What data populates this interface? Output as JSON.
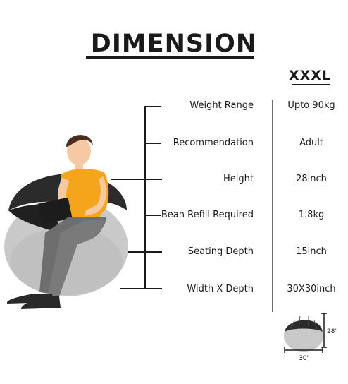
{
  "title": "DIMENSION",
  "size": "XXXL",
  "specs": [
    {
      "label": "Weight Range",
      "value": "Upto 90kg"
    },
    {
      "label": "Recommendation",
      "value": "Adult"
    },
    {
      "label": "Height",
      "value": "28inch"
    },
    {
      "label": "Bean Refill Required",
      "value": "1.8kg"
    },
    {
      "label": "Seating Depth",
      "value": "15inch"
    },
    {
      "label": "Width X Depth",
      "value": "30X30inch"
    }
  ],
  "thumbnail": {
    "height_label": "28\"",
    "width_label": "30\""
  },
  "colors": {
    "bag_top": "#2b2b2b",
    "bag_base": "#c9c9c9",
    "shirt": "#f4a51c",
    "pants": "#6e6e6e",
    "text": "#1a1a1a"
  }
}
